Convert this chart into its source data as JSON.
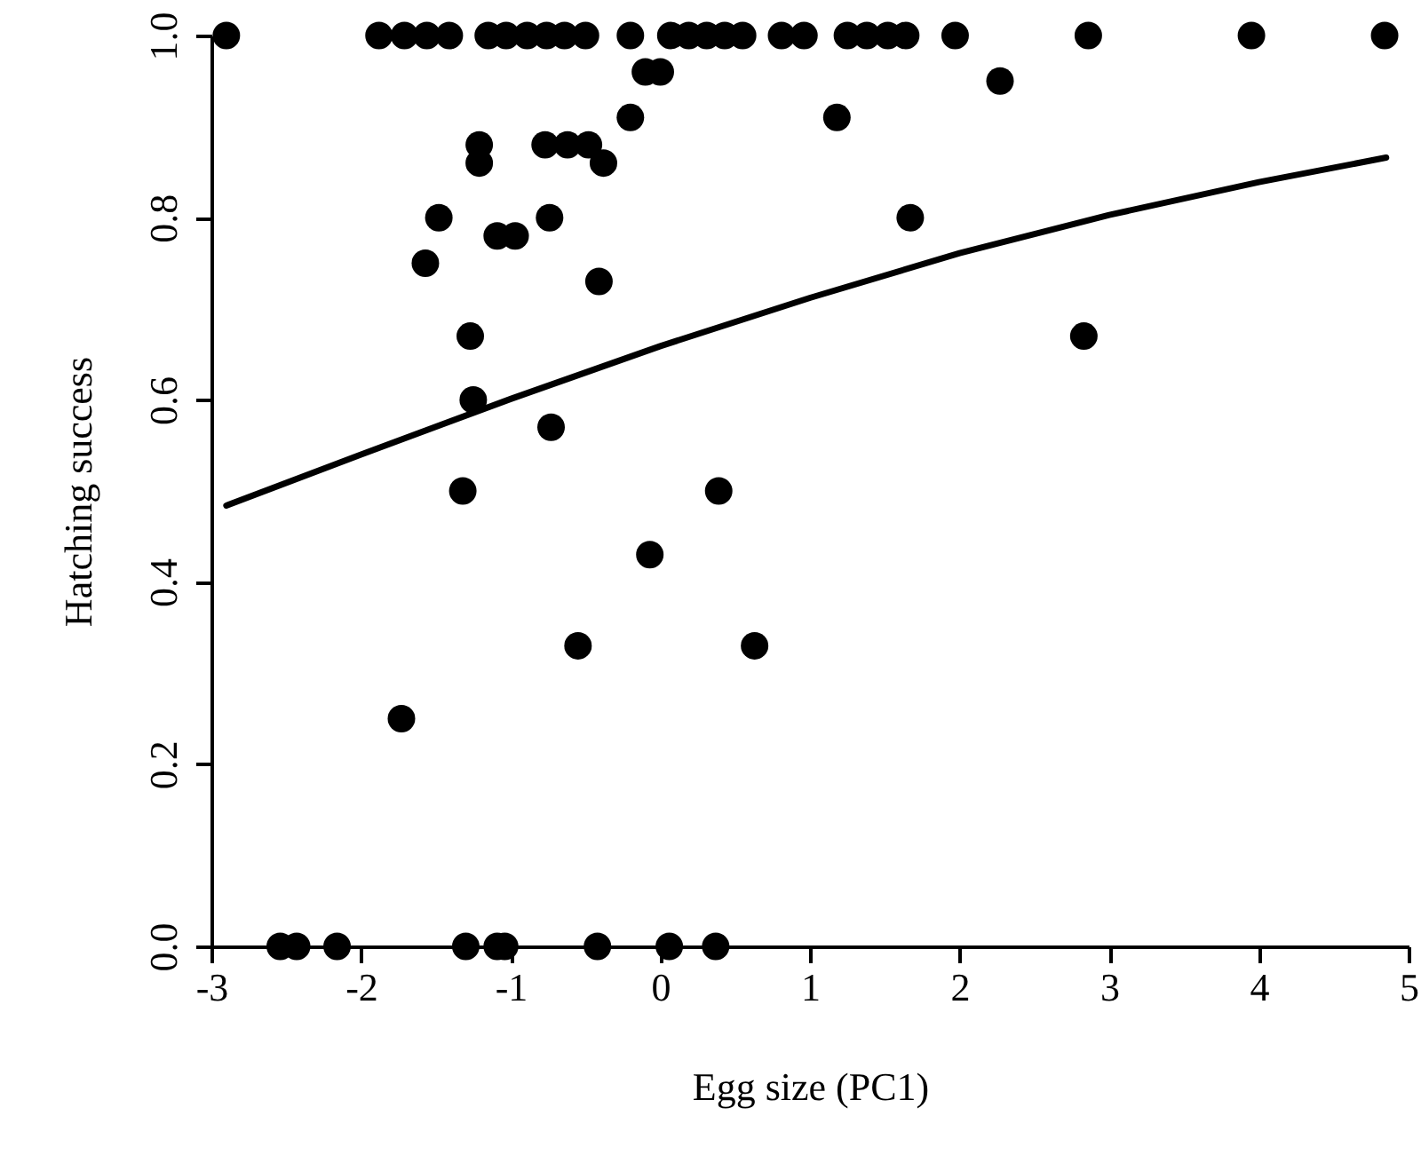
{
  "chart_data": {
    "type": "scatter",
    "xlabel": "Egg size (PC1)",
    "ylabel": "Hatching success",
    "xlim": [
      -3,
      5
    ],
    "xticks": [
      -3,
      -2,
      -1,
      0,
      1,
      2,
      3,
      4,
      5
    ],
    "ylim": [
      0,
      1
    ],
    "yticks": [
      {
        "value": 0,
        "label": "0.0"
      },
      {
        "value": 0.2,
        "label": "0.2"
      },
      {
        "value": 0.4,
        "label": "0.4"
      },
      {
        "value": 0.6,
        "label": "0.6"
      },
      {
        "value": 0.8,
        "label": "0.8"
      },
      {
        "value": 1,
        "label": "1.0"
      }
    ],
    "grid": false,
    "series": [
      {
        "type": "scatter",
        "marker": "circle",
        "color": "#000000",
        "x": [
          -2.9,
          -1.88,
          -1.71,
          -1.56,
          -1.41,
          -1.15,
          -1.03,
          -0.89,
          -0.76,
          -0.64,
          -0.5,
          -0.2,
          0.07,
          0.19,
          0.31,
          0.43,
          0.55,
          0.81,
          0.96,
          1.25,
          1.38,
          1.52,
          1.64,
          1.97,
          2.86,
          3.95,
          4.84,
          -0.1,
          0.0,
          -0.2,
          -1.21,
          -1.21,
          -0.77,
          -0.62,
          -0.48,
          -0.38,
          -1.48,
          -1.09,
          -0.97,
          -0.74,
          -1.57,
          -0.41,
          -1.27,
          -1.25,
          -0.73,
          2.27,
          1.18,
          1.67,
          2.83,
          -1.32,
          0.39,
          -0.07,
          -0.55,
          0.63,
          -1.73,
          -2.54,
          -2.43,
          -2.16,
          -1.3,
          -1.09,
          -1.04,
          -0.42,
          0.06,
          0.37
        ],
        "values": [
          1,
          1,
          1,
          1,
          1,
          1,
          1,
          1,
          1,
          1,
          1,
          1,
          1,
          1,
          1,
          1,
          1,
          1,
          1,
          1,
          1,
          1,
          1,
          1,
          1,
          1,
          1,
          0.96,
          0.96,
          0.91,
          0.88,
          0.86,
          0.88,
          0.88,
          0.88,
          0.86,
          0.8,
          0.78,
          0.78,
          0.8,
          0.75,
          0.73,
          0.67,
          0.6,
          0.57,
          0.95,
          0.91,
          0.8,
          0.67,
          0.5,
          0.5,
          0.43,
          0.33,
          0.33,
          0.25,
          0,
          0,
          0,
          0,
          0,
          0,
          0,
          0,
          0
        ]
      },
      {
        "type": "line",
        "line_style": "solid",
        "color": "#000000",
        "x": [
          -2.9,
          -2,
          -1,
          0,
          1,
          2,
          3,
          4,
          4.85
        ],
        "values": [
          0.484,
          0.54,
          0.601,
          0.659,
          0.712,
          0.761,
          0.803,
          0.839,
          0.866
        ]
      }
    ]
  }
}
